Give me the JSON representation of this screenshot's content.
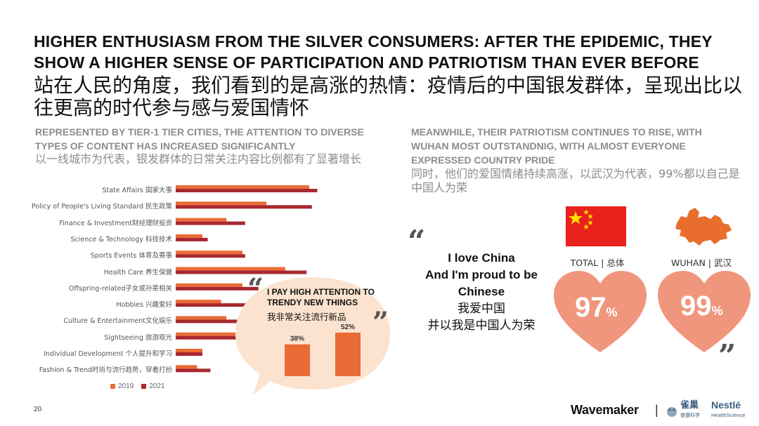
{
  "header": {
    "title_en": "HIGHER ENTHUSIASM FROM THE SILVER CONSUMERS: AFTER THE EPIDEMIC, THEY SHOW A HIGHER SENSE OF PARTICIPATION AND PATRIOTISM THAN EVER BEFORE",
    "title_cn": "站在人民的角度，我们看到的是高涨的热情：疫情后的中国银发群体，呈现出比以往更高的时代参与感与爱国情怀"
  },
  "left": {
    "subtitle_en": "REPRESENTED BY TIER-1 TIER CITIES, THE ATTENTION TO DIVERSE TYPES OF CONTENT HAS INCREASED SIGNIFICANTLY",
    "subtitle_cn": "以一线城市为代表，银发群体的日常关注内容比例都有了显著增长"
  },
  "right": {
    "subtitle_en": "MEANWHILE, THEIR PATRIOTISM CONTINUES TO RISE, WITH WUHAN MOST OUTSTANDNIG, WITH ALMOST EVERYONE EXPRESSED COUNTRY PRIDE",
    "subtitle_cn": "同时，他们的爱国情绪持续高涨，以武汉为代表，99%都以自己是中国人为荣",
    "quote_lines": [
      "I love China",
      "And I'm proud to be",
      "Chinese"
    ],
    "quote_cn_lines": [
      "我爱中国",
      "并以我是中国人为荣"
    ],
    "total_label": "TOTAL | 总体",
    "wuhan_label": "WUHAN | 武汉",
    "total_value": "97",
    "wuhan_value": "99",
    "pct": "%",
    "flag_color": "#e8211b",
    "heart_color": "#f0967c",
    "map_color": "#e96e2e"
  },
  "callout": {
    "text_en_1": "I PAY HIGH ATTENTION TO",
    "text_en_2": "TRENDY NEW THINGS",
    "text_cn": "我非常关注流行新品",
    "values": [
      38,
      52
    ],
    "labels": [
      "38%",
      "52%"
    ],
    "bubble_color": "#fbe3cf",
    "bar_color": "#ea6b35"
  },
  "footer": {
    "page_number": "20",
    "brand": "Wavemaker",
    "separator": "|",
    "partner_cn": "雀巢",
    "partner_cn_sub": "健康科学",
    "partner_en": "Nestlé",
    "partner_en_sub": "HealthScience"
  },
  "quote_marks": {
    "open": "“",
    "close": "”"
  },
  "chart_data": {
    "type": "bar",
    "orientation": "horizontal",
    "categories": [
      "State Affairs 国家大事",
      "Policy of People's Living Standard 民生政策",
      "Finance & Investment财经理财投资",
      "Science & Technology 科技技术",
      "Sports Events 体育及赛事",
      "Health Care 养生保健",
      "Offspring-related子女或孙辈相关",
      "Hobbies 兴趣爱好",
      "Culture & Entertainment文化娱乐",
      "Sightseeing 旅游观光",
      "Individual Development 个人提升和学习",
      "Fashion & Trend时尚与流行趋势，穿着打扮"
    ],
    "series": [
      {
        "name": "2019",
        "color": "#ea6b35",
        "values": [
          50,
          34,
          19,
          10,
          25,
          41,
          25,
          17,
          19,
          25,
          10,
          8
        ]
      },
      {
        "name": "2021",
        "color": "#a8282e",
        "values": [
          53,
          51,
          26,
          12,
          26,
          49,
          31,
          30,
          34,
          47,
          10,
          13
        ]
      }
    ],
    "xlim": [
      0,
      100
    ],
    "legend": "bottom-left",
    "grid": false
  }
}
